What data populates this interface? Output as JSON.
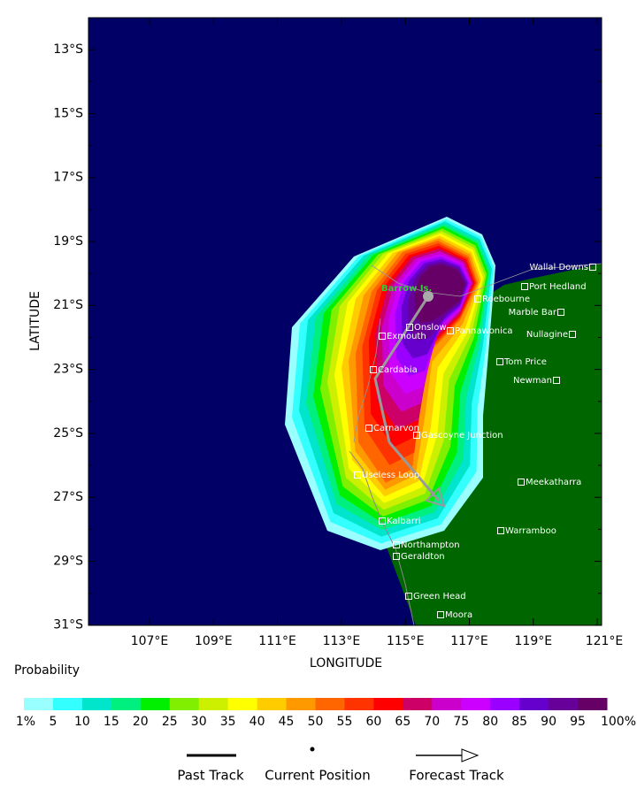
{
  "map": {
    "yticks": [
      "13°S",
      "15°S",
      "17°S",
      "19°S",
      "21°S",
      "23°S",
      "25°S",
      "27°S",
      "29°S",
      "31°S"
    ],
    "xticks": [
      "107°E",
      "109°E",
      "111°E",
      "113°E",
      "115°E",
      "117°E",
      "119°E",
      "121°E"
    ],
    "xlabel": "LONGITUDE",
    "ylabel": "LATITUDE",
    "highlight": "Barrow Is.",
    "places": [
      "Wallal Downs",
      "Port Hedland",
      "Roebourne",
      "Marble Bar",
      "Onslow",
      "Pannawonica",
      "Exmouth",
      "Nullagine",
      "Tom Price",
      "Cardabia",
      "Newman",
      "Carnarvon",
      "Gascoyne Junction",
      "Useless Loop",
      "Meekatharra",
      "Kalbarri",
      "Warramboo",
      "Northampton",
      "Geraldton",
      "Green Head",
      "Moora"
    ],
    "colorbar": {
      "title": "Probability",
      "labels": [
        "1%",
        "5",
        "10",
        "15",
        "20",
        "25",
        "30",
        "35",
        "40",
        "45",
        "50",
        "55",
        "60",
        "65",
        "70",
        "75",
        "80",
        "85",
        "90",
        "95",
        "100%"
      ],
      "colors": [
        "#99ffff",
        "#33ffff",
        "#00e5cc",
        "#00f080",
        "#00f000",
        "#80f000",
        "#ccf000",
        "#ffff00",
        "#ffcc00",
        "#ff9900",
        "#ff6600",
        "#ff3300",
        "#ff0000",
        "#cc0066",
        "#cc00cc",
        "#cc00ff",
        "#9900ff",
        "#6600cc",
        "#660099",
        "#660066"
      ]
    },
    "legend": [
      "Past Track",
      "Current Position",
      "Forecast Track"
    ]
  }
}
